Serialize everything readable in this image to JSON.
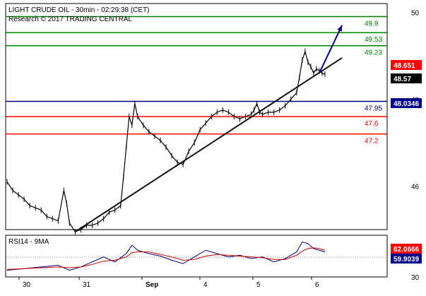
{
  "header": {
    "title": "LIGHT CRUDE OIL - 30min - 02:29:38 (CET)",
    "subtitle": "Research © 2017 TRADING CENTRAL"
  },
  "chart_data": [
    {
      "type": "line",
      "panel": "price",
      "title": "LIGHT CRUDE OIL - 30min - 02:29:38 (CET)",
      "ylim": [
        45,
        50.2
      ],
      "y_ticks": [
        "50",
        "48",
        "46"
      ],
      "x_ticks": [
        "30",
        "31",
        "Sep",
        "4",
        "5",
        "6"
      ],
      "price_path": [
        [
          0,
          46.1
        ],
        [
          2,
          45.9
        ],
        [
          4,
          45.8
        ],
        [
          6,
          45.7
        ],
        [
          8,
          45.55
        ],
        [
          10,
          45.5
        ],
        [
          12,
          45.45
        ],
        [
          14,
          45.3
        ],
        [
          16,
          45.25
        ],
        [
          18,
          45.2
        ],
        [
          20,
          45.9
        ],
        [
          21,
          45.6
        ],
        [
          22,
          45.15
        ],
        [
          24,
          44.95
        ],
        [
          26,
          45.0
        ],
        [
          28,
          45.1
        ],
        [
          30,
          45.1
        ],
        [
          32,
          45.15
        ],
        [
          34,
          45.25
        ],
        [
          36,
          45.4
        ],
        [
          38,
          45.45
        ],
        [
          40,
          45.55
        ],
        [
          41,
          46.2
        ],
        [
          42,
          46.9
        ],
        [
          43,
          47.6
        ],
        [
          44,
          47.4
        ],
        [
          45,
          47.9
        ],
        [
          46,
          47.6
        ],
        [
          48,
          47.4
        ],
        [
          50,
          47.25
        ],
        [
          52,
          47.15
        ],
        [
          54,
          47.05
        ],
        [
          56,
          46.9
        ],
        [
          58,
          46.7
        ],
        [
          60,
          46.55
        ],
        [
          62,
          46.5
        ],
        [
          64,
          46.8
        ],
        [
          66,
          47.0
        ],
        [
          68,
          47.3
        ],
        [
          70,
          47.45
        ],
        [
          72,
          47.6
        ],
        [
          74,
          47.7
        ],
        [
          76,
          47.75
        ],
        [
          78,
          47.7
        ],
        [
          80,
          47.6
        ],
        [
          82,
          47.55
        ],
        [
          84,
          47.6
        ],
        [
          86,
          47.65
        ],
        [
          87,
          47.75
        ],
        [
          88,
          47.9
        ],
        [
          89,
          47.7
        ],
        [
          90,
          47.65
        ],
        [
          92,
          47.7
        ],
        [
          94,
          47.7
        ],
        [
          96,
          47.75
        ],
        [
          98,
          47.85
        ],
        [
          100,
          48.0
        ],
        [
          102,
          48.15
        ],
        [
          103,
          48.5
        ],
        [
          104,
          48.9
        ],
        [
          105,
          49.1
        ],
        [
          106,
          48.85
        ],
        [
          107,
          48.75
        ],
        [
          108,
          48.6
        ],
        [
          109,
          48.7
        ],
        [
          110,
          48.65
        ],
        [
          111,
          48.6
        ],
        [
          112,
          48.57
        ]
      ],
      "trendline": [
        [
          24,
          44.95
        ],
        [
          118,
          48.95
        ]
      ],
      "forecast_arrow": [
        [
          110,
          48.6
        ],
        [
          118,
          49.7
        ]
      ],
      "levels": [
        {
          "value": 49.9,
          "label": "49.9",
          "color": "#008000"
        },
        {
          "value": 49.53,
          "label": "49.53",
          "color": "#008000"
        },
        {
          "value": 49.23,
          "label": "49.23",
          "color": "#008000"
        },
        {
          "value": 47.95,
          "label": "47.95",
          "color": "#00008b"
        },
        {
          "value": 47.6,
          "label": "47.6",
          "color": "#ff0000"
        },
        {
          "value": 47.2,
          "label": "47.2",
          "color": "#ff0000"
        }
      ],
      "price_tags": [
        {
          "value": 48.651,
          "label": "48.651",
          "bg": "#ff0000",
          "fg": "#ffffff"
        },
        {
          "value": 48.57,
          "label": "48.57",
          "bg": "#000000",
          "fg": "#ffffff"
        },
        {
          "value": 48.0346,
          "label": "48.0346",
          "bg": "#00008b",
          "fg": "#ffffff"
        }
      ]
    },
    {
      "type": "line",
      "panel": "indicator",
      "title": "RSI14 - 9MA",
      "ylim": [
        30,
        80
      ],
      "y_ticks": [
        "50",
        "30"
      ],
      "series": [
        {
          "name": "RSI14",
          "color": "#000080",
          "values": [
            [
              0,
              38
            ],
            [
              6,
              40
            ],
            [
              12,
              42
            ],
            [
              18,
              44
            ],
            [
              22,
              38
            ],
            [
              26,
              42
            ],
            [
              30,
              48
            ],
            [
              34,
              54
            ],
            [
              38,
              48
            ],
            [
              42,
              58
            ],
            [
              44,
              68
            ],
            [
              46,
              62
            ],
            [
              50,
              58
            ],
            [
              54,
              55
            ],
            [
              58,
              50
            ],
            [
              62,
              46
            ],
            [
              66,
              54
            ],
            [
              70,
              62
            ],
            [
              74,
              58
            ],
            [
              78,
              54
            ],
            [
              82,
              56
            ],
            [
              86,
              52
            ],
            [
              90,
              54
            ],
            [
              94,
              48
            ],
            [
              98,
              52
            ],
            [
              102,
              60
            ],
            [
              104,
              72
            ],
            [
              106,
              70
            ],
            [
              108,
              64
            ],
            [
              110,
              62
            ],
            [
              112,
              60
            ]
          ]
        },
        {
          "name": "9MA",
          "color": "#cc0000",
          "values": [
            [
              0,
              39
            ],
            [
              6,
              40
            ],
            [
              12,
              41
            ],
            [
              18,
              42
            ],
            [
              22,
              41
            ],
            [
              26,
              42
            ],
            [
              30,
              45
            ],
            [
              34,
              49
            ],
            [
              38,
              50
            ],
            [
              42,
              54
            ],
            [
              44,
              59
            ],
            [
              46,
              60
            ],
            [
              50,
              60
            ],
            [
              54,
              57
            ],
            [
              58,
              54
            ],
            [
              62,
              50
            ],
            [
              66,
              51
            ],
            [
              70,
              55
            ],
            [
              74,
              57
            ],
            [
              78,
              56
            ],
            [
              82,
              55
            ],
            [
              86,
              54
            ],
            [
              90,
              53
            ],
            [
              94,
              51
            ],
            [
              98,
              51
            ],
            [
              102,
              56
            ],
            [
              104,
              61
            ],
            [
              106,
              64
            ],
            [
              108,
              65
            ],
            [
              110,
              64
            ],
            [
              112,
              62
            ]
          ]
        }
      ],
      "tags": [
        {
          "value": 62.0666,
          "label": "62.0666",
          "bg": "#ff0000",
          "fg": "#ffffff"
        },
        {
          "value": 59.9039,
          "label": "59.9039",
          "bg": "#00008b",
          "fg": "#ffffff"
        }
      ]
    }
  ]
}
